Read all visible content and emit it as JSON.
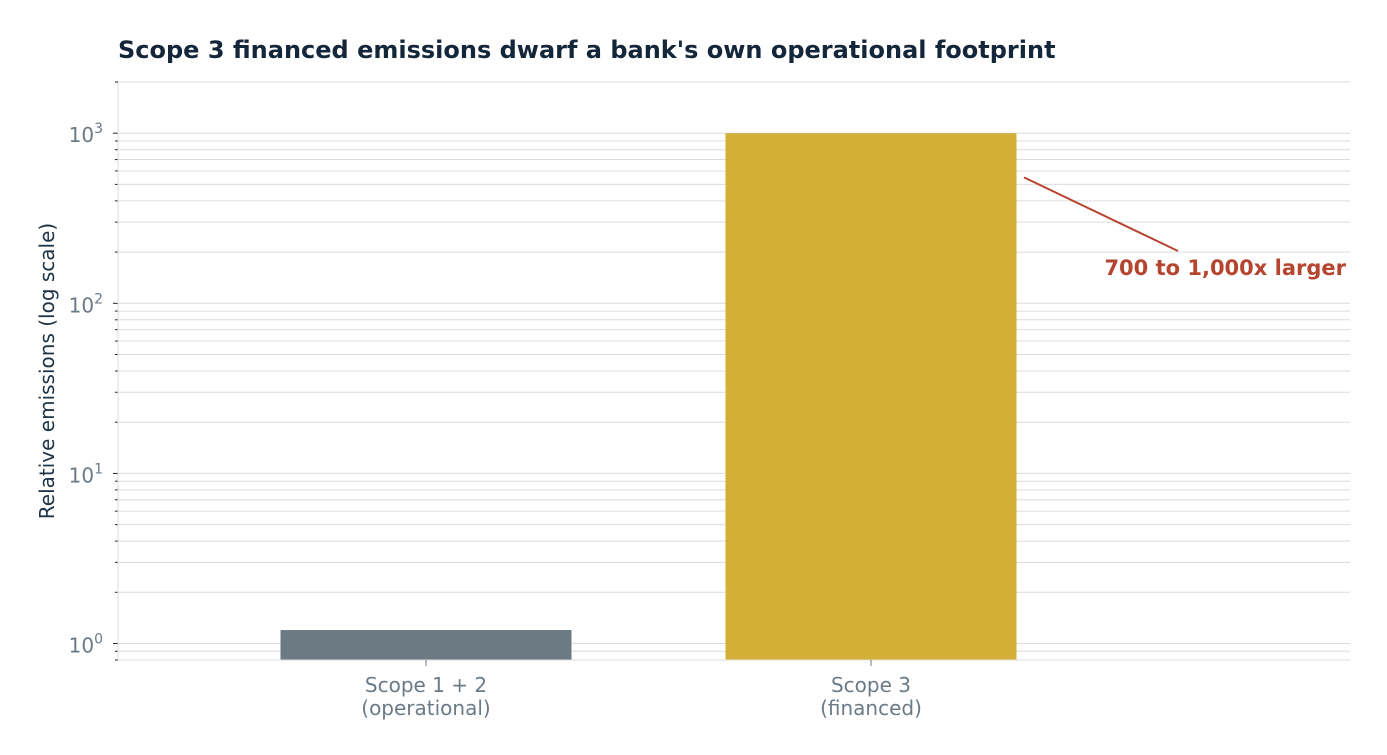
{
  "chart_data": {
    "type": "bar",
    "title": "Scope 3 financed emissions dwarf a bank's own operational footprint",
    "ylabel": "Relative emissions (log scale)",
    "y_scale": "log",
    "ylim": [
      0.8,
      2000
    ],
    "y_ticks": [
      {
        "value": 1,
        "base": "10",
        "exp": "0"
      },
      {
        "value": 10,
        "base": "10",
        "exp": "1"
      },
      {
        "value": 100,
        "base": "10",
        "exp": "2"
      },
      {
        "value": 1000,
        "base": "10",
        "exp": "3"
      }
    ],
    "grid": "both (major and minor)",
    "categories": [
      [
        "Scope 1 + 2",
        "(operational)"
      ],
      [
        "Scope 3",
        "(financed)"
      ]
    ],
    "values": [
      1.2,
      1000
    ],
    "colors": [
      "#6b7a83",
      "#d4af37"
    ],
    "annotation": {
      "text": "700 to 1,000x larger",
      "color": "#b5452e",
      "points_to_value": 550
    }
  }
}
